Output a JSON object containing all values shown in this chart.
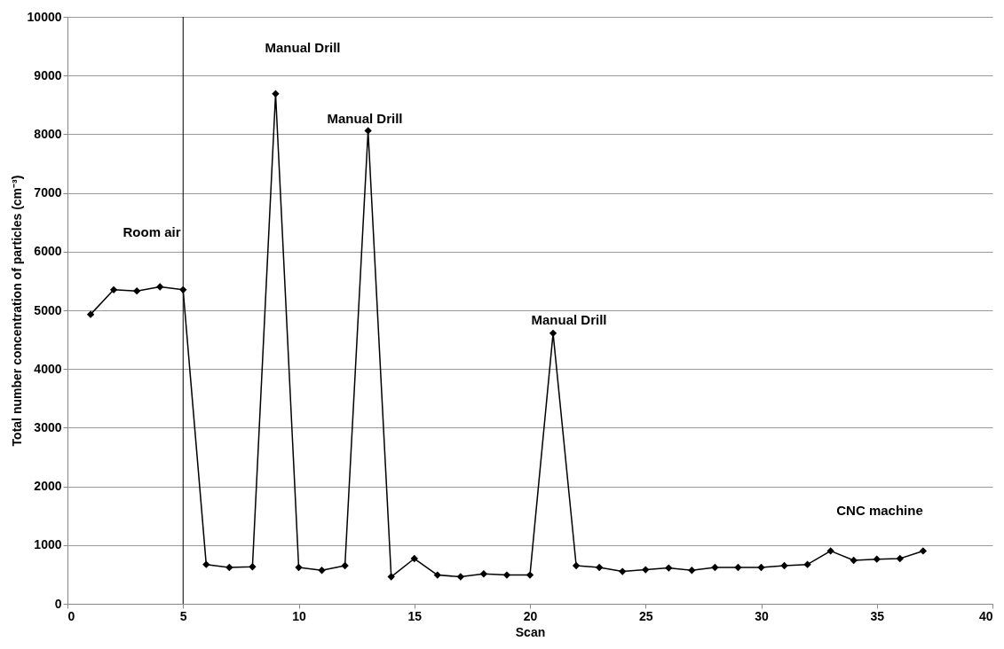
{
  "chart_data": {
    "type": "line",
    "xlabel": "Scan",
    "ylabel": "Total number concentration of particles (cm⁻³)",
    "x": [
      1,
      2,
      3,
      4,
      5,
      6,
      7,
      8,
      9,
      10,
      11,
      12,
      13,
      14,
      15,
      16,
      17,
      18,
      19,
      20,
      21,
      22,
      23,
      24,
      25,
      26,
      27,
      28,
      29,
      30,
      31,
      32,
      33,
      34,
      35,
      36,
      37
    ],
    "series": [
      {
        "color": "#000000",
        "values": [
          4930,
          5350,
          5330,
          5400,
          5350,
          670,
          620,
          630,
          8690,
          620,
          570,
          650,
          8060,
          460,
          770,
          490,
          460,
          510,
          490,
          490,
          4610,
          650,
          620,
          550,
          580,
          610,
          570,
          620,
          620,
          620,
          650,
          670,
          900,
          740,
          760,
          770,
          900
        ]
      }
    ],
    "xlim": [
      0,
      40
    ],
    "xticks": [
      0,
      5,
      10,
      15,
      20,
      25,
      30,
      35,
      40
    ],
    "ylim": [
      0,
      10000
    ],
    "yticks": [
      0,
      1000,
      2000,
      3000,
      4000,
      5000,
      6000,
      7000,
      8000,
      9000,
      10000
    ],
    "grid": "y",
    "marker": "diamond",
    "line_style": "solid",
    "ref_lines": [
      {
        "axis": "x",
        "value": 5,
        "color": "#000000"
      }
    ],
    "annotations": [
      "Room air",
      "Manual Drill",
      "Manual Drill",
      "Manual Drill",
      "CNC machine"
    ]
  }
}
